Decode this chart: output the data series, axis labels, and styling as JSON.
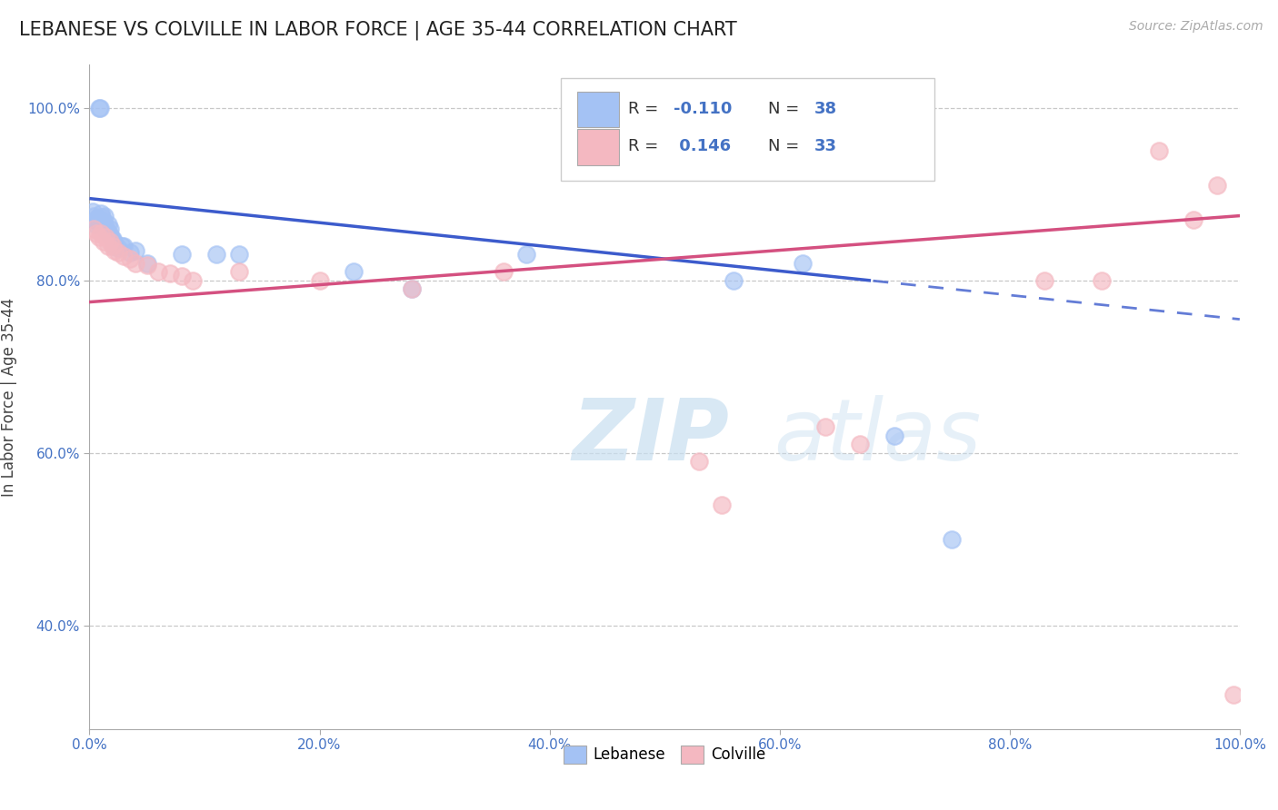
{
  "title": "LEBANESE VS COLVILLE IN LABOR FORCE | AGE 35-44 CORRELATION CHART",
  "source_text": "Source: ZipAtlas.com",
  "ylabel": "In Labor Force | Age 35-44",
  "legend_label_1": "Lebanese",
  "legend_label_2": "Colville",
  "R1": -0.11,
  "N1": 38,
  "R2": 0.146,
  "N2": 33,
  "color1": "#a4c2f4",
  "color2": "#f4b8c1",
  "trend1_color": "#3c5bcc",
  "trend2_color": "#d45080",
  "xlim": [
    0.0,
    1.0
  ],
  "ylim": [
    0.28,
    1.05
  ],
  "xticks": [
    0.0,
    0.2,
    0.4,
    0.6,
    0.8,
    1.0
  ],
  "yticks": [
    0.4,
    0.6,
    0.8,
    1.0
  ],
  "watermark_zip": "ZIP",
  "watermark_atlas": "atlas",
  "blue_x": [
    0.003,
    0.004,
    0.005,
    0.006,
    0.007,
    0.007,
    0.008,
    0.009,
    0.01,
    0.01,
    0.011,
    0.012,
    0.013,
    0.014,
    0.015,
    0.016,
    0.017,
    0.018,
    0.019,
    0.02,
    0.021,
    0.022,
    0.025,
    0.028,
    0.03,
    0.035,
    0.04,
    0.05,
    0.08,
    0.11,
    0.13,
    0.23,
    0.28,
    0.38,
    0.56,
    0.62,
    0.7,
    0.75
  ],
  "blue_y": [
    0.88,
    0.875,
    0.865,
    0.87,
    0.872,
    0.868,
    1.0,
    1.0,
    0.878,
    0.87,
    0.873,
    0.868,
    0.875,
    0.862,
    0.858,
    0.865,
    0.855,
    0.86,
    0.85,
    0.848,
    0.845,
    0.84,
    0.838,
    0.84,
    0.84,
    0.832,
    0.835,
    0.82,
    0.83,
    0.83,
    0.83,
    0.81,
    0.79,
    0.83,
    0.8,
    0.82,
    0.62,
    0.5
  ],
  "pink_x": [
    0.004,
    0.006,
    0.008,
    0.01,
    0.012,
    0.014,
    0.016,
    0.018,
    0.02,
    0.022,
    0.025,
    0.03,
    0.035,
    0.04,
    0.05,
    0.06,
    0.07,
    0.08,
    0.09,
    0.13,
    0.2,
    0.28,
    0.36,
    0.53,
    0.55,
    0.64,
    0.67,
    0.83,
    0.88,
    0.93,
    0.96,
    0.98,
    0.995
  ],
  "pink_y": [
    0.86,
    0.855,
    0.85,
    0.855,
    0.845,
    0.85,
    0.84,
    0.845,
    0.84,
    0.835,
    0.832,
    0.828,
    0.825,
    0.82,
    0.818,
    0.81,
    0.808,
    0.805,
    0.8,
    0.81,
    0.8,
    0.79,
    0.81,
    0.59,
    0.54,
    0.63,
    0.61,
    0.8,
    0.8,
    0.95,
    0.87,
    0.91,
    0.32
  ]
}
